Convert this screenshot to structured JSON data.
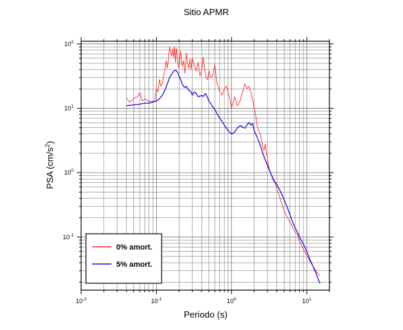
{
  "chart_data": {
    "type": "line",
    "title": "Sitio APMR",
    "xlabel": "Periodo (s)",
    "ylabel_main": "PSA (cm/s",
    "ylabel_sup": "2",
    "ylabel_close": ")",
    "x_scale": "log",
    "y_scale": "log",
    "xlim": [
      0.01,
      20
    ],
    "ylim": [
      0.015,
      110
    ],
    "grid": true,
    "legend_position": "bottom-left",
    "x_ticks": [
      {
        "value": 0.01,
        "base": "10",
        "exp": "-2"
      },
      {
        "value": 0.1,
        "base": "10",
        "exp": "-1"
      },
      {
        "value": 1,
        "base": "10",
        "exp": "0"
      },
      {
        "value": 10,
        "base": "10",
        "exp": "1"
      }
    ],
    "y_ticks": [
      {
        "value": 0.1,
        "base": "10",
        "exp": "-1"
      },
      {
        "value": 1,
        "base": "10",
        "exp": "0"
      },
      {
        "value": 10,
        "base": "10",
        "exp": "1"
      },
      {
        "value": 100,
        "base": "10",
        "exp": "2"
      }
    ],
    "series": [
      {
        "name": "0% amort.",
        "color": "#ff2a2a",
        "x": [
          0.04,
          0.044,
          0.048,
          0.052,
          0.056,
          0.06,
          0.065,
          0.07,
          0.075,
          0.08,
          0.085,
          0.09,
          0.095,
          0.1,
          0.105,
          0.11,
          0.115,
          0.12,
          0.125,
          0.13,
          0.135,
          0.14,
          0.145,
          0.15,
          0.155,
          0.16,
          0.165,
          0.17,
          0.175,
          0.18,
          0.185,
          0.19,
          0.195,
          0.2,
          0.21,
          0.22,
          0.23,
          0.24,
          0.25,
          0.26,
          0.27,
          0.28,
          0.29,
          0.3,
          0.32,
          0.34,
          0.36,
          0.38,
          0.4,
          0.42,
          0.44,
          0.46,
          0.48,
          0.5,
          0.53,
          0.56,
          0.6,
          0.63,
          0.66,
          0.7,
          0.75,
          0.8,
          0.85,
          0.9,
          0.95,
          1.0,
          1.1,
          1.2,
          1.3,
          1.4,
          1.5,
          1.6,
          1.7,
          1.8,
          1.9,
          2.0,
          2.1,
          2.2,
          2.3,
          2.4,
          2.5,
          2.6,
          2.7,
          2.8,
          3.0,
          3.2,
          3.4,
          3.6,
          3.8,
          4.0,
          4.3,
          4.6,
          5.0,
          5.5,
          6.0,
          6.5,
          7.0,
          7.5,
          8.0,
          9.0,
          10.0,
          11.0,
          12.0,
          13.0,
          14.0,
          15.0
        ],
        "y": [
          14.5,
          12.5,
          13.5,
          14.5,
          15,
          17.5,
          13,
          14,
          13.5,
          12.5,
          13,
          12.8,
          13,
          20,
          18,
          28,
          22,
          24,
          32,
          40,
          55,
          42,
          58,
          90,
          72,
          65,
          85,
          62,
          90,
          52,
          85,
          70,
          45,
          42,
          78,
          45,
          55,
          35,
          72,
          50,
          42,
          58,
          40,
          60,
          45,
          38,
          52,
          32,
          38,
          62,
          40,
          30,
          28,
          38,
          30,
          32,
          48,
          26,
          22,
          18,
          16,
          20,
          22,
          18,
          14,
          10,
          15,
          11,
          13,
          18,
          24,
          20,
          22,
          18,
          14,
          10,
          7.5,
          5.2,
          4.5,
          4.0,
          3.2,
          2.5,
          2.2,
          2.8,
          1.6,
          1.1,
          0.9,
          0.75,
          0.7,
          0.55,
          0.45,
          0.34,
          0.26,
          0.2,
          0.17,
          0.14,
          0.12,
          0.11,
          0.085,
          0.065,
          0.052,
          0.042,
          0.036,
          0.031,
          0.027,
          0.025
        ]
      },
      {
        "name": "5% amort.",
        "color": "#1414e6",
        "x": [
          0.04,
          0.05,
          0.06,
          0.07,
          0.08,
          0.09,
          0.1,
          0.11,
          0.12,
          0.13,
          0.14,
          0.15,
          0.16,
          0.17,
          0.18,
          0.19,
          0.2,
          0.21,
          0.22,
          0.23,
          0.24,
          0.25,
          0.27,
          0.29,
          0.3,
          0.32,
          0.34,
          0.36,
          0.38,
          0.4,
          0.42,
          0.45,
          0.48,
          0.5,
          0.55,
          0.6,
          0.65,
          0.7,
          0.8,
          0.9,
          1.0,
          1.1,
          1.2,
          1.3,
          1.4,
          1.5,
          1.6,
          1.7,
          1.8,
          1.9,
          2.0,
          2.2,
          2.4,
          2.6,
          2.8,
          3.0,
          3.3,
          3.6,
          4.0,
          4.5,
          5.0,
          5.5,
          6.0,
          6.5,
          7.0,
          7.5,
          8.0,
          9.0,
          10.0,
          11.0,
          12.0,
          13.0,
          14.0,
          15.0
        ],
        "y": [
          11,
          11.3,
          11.6,
          12,
          12,
          12.5,
          13,
          14,
          16,
          19,
          24,
          30,
          34,
          38,
          39,
          37,
          32,
          28,
          24,
          22,
          21,
          22,
          19,
          18,
          16,
          18,
          17,
          15,
          15.5,
          15.8,
          15.3,
          17,
          14.5,
          13,
          11,
          9.5,
          8,
          7,
          5.5,
          4.5,
          4,
          4.3,
          5,
          5.4,
          5.1,
          4.9,
          5.5,
          6,
          5.5,
          5.8,
          4.5,
          3.5,
          2.7,
          2.0,
          1.6,
          1.3,
          1.0,
          0.78,
          0.65,
          0.5,
          0.38,
          0.29,
          0.22,
          0.17,
          0.14,
          0.12,
          0.1,
          0.078,
          0.06,
          0.045,
          0.036,
          0.029,
          0.023,
          0.019
        ]
      }
    ]
  }
}
